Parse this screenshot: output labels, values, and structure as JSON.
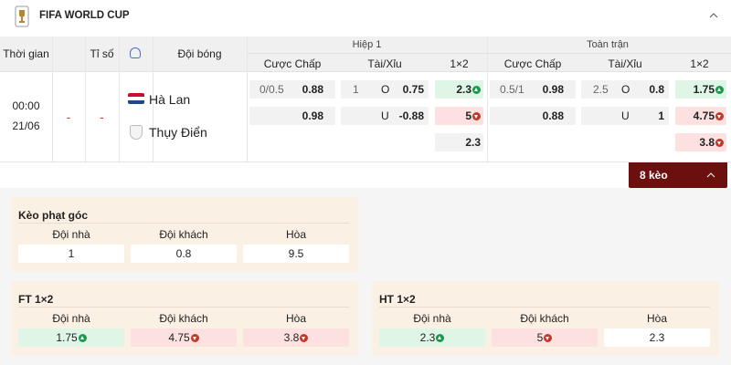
{
  "header": {
    "title": "FIFA WORLD CUP"
  },
  "table": {
    "columns": {
      "time": "Thời gian",
      "score": "Tỉ số",
      "team": "Đội bóng"
    },
    "first_half": {
      "title": "Hiệp 1",
      "subheaders": [
        "Cược Chấp",
        "Tài/Xỉu",
        "1×2"
      ]
    },
    "full_time": {
      "title": "Toàn trận",
      "subheaders": [
        "Cược Chấp",
        "Tài/Xỉu",
        "1×2"
      ]
    }
  },
  "match": {
    "time": "00:00",
    "date": "21/06",
    "score": [
      "-",
      "-"
    ],
    "home": "Hà Lan",
    "away": "Thụy Điển",
    "first_half": {
      "handicap": [
        {
          "line": "0/0.5",
          "odds": 0.88
        },
        {
          "odds": 0.98
        }
      ],
      "over_under": [
        {
          "line": 1,
          "side": "O",
          "odds": 0.75
        },
        {
          "side": "U",
          "odds": -0.88
        }
      ],
      "one_x_two": [
        {
          "odds": 2.3,
          "trend": "up"
        },
        {
          "odds": 5,
          "trend": "down"
        },
        {
          "odds": 2.3
        }
      ]
    },
    "full_time": {
      "handicap": [
        {
          "line": "0.5/1",
          "odds": 0.98
        },
        {
          "odds": 0.88
        }
      ],
      "over_under": [
        {
          "line": 2.5,
          "side": "O",
          "odds": 0.8
        },
        {
          "side": "U",
          "odds": 1
        }
      ],
      "one_x_two": [
        {
          "odds": 1.75,
          "trend": "up"
        },
        {
          "odds": 4.75,
          "trend": "down"
        },
        {
          "odds": 3.8,
          "trend": "down"
        }
      ]
    }
  },
  "more_button": "8 kèo",
  "panels": [
    {
      "title": "Kèo phạt góc",
      "labels": [
        "Đội nhà",
        "Đội khách",
        "Hòa"
      ],
      "odds": [
        {
          "value": 1
        },
        {
          "value": 0.8
        },
        {
          "value": 9.5
        }
      ]
    },
    {
      "title": "FT 1×2",
      "labels": [
        "Đội nhà",
        "Đội khách",
        "Hòa"
      ],
      "odds": [
        {
          "value": 1.75,
          "trend": "up"
        },
        {
          "value": 4.75,
          "trend": "down"
        },
        {
          "value": 3.8,
          "trend": "down"
        }
      ]
    },
    {
      "title": "HT 1×2",
      "labels": [
        "Đội nhà",
        "Đội khách",
        "Hòa"
      ],
      "odds": [
        {
          "value": 2.3,
          "trend": "up"
        },
        {
          "value": 5,
          "trend": "down"
        },
        {
          "value": 2.3
        }
      ]
    }
  ]
}
